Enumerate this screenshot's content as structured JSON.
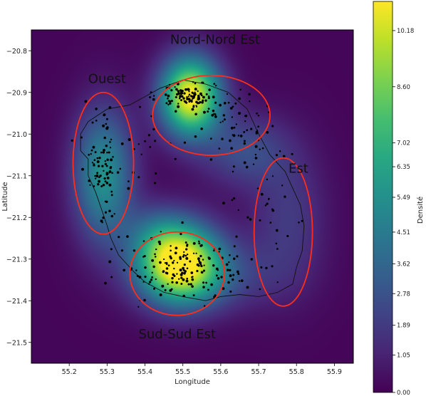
{
  "chart_data": {
    "type": "heatmap",
    "title": "",
    "xlabel": "Longitude",
    "ylabel": "Latitude",
    "xlim": [
      55.1,
      55.95
    ],
    "ylim": [
      -21.55,
      -20.75
    ],
    "x_ticks": [
      55.2,
      55.3,
      55.4,
      55.5,
      55.6,
      55.7,
      55.8,
      55.9
    ],
    "x_tick_labels": [
      "55.2",
      "55.3",
      "55.4",
      "55.5",
      "55.6",
      "55.7",
      "55.8",
      "55.9"
    ],
    "y_ticks": [
      -20.8,
      -20.9,
      -21.0,
      -21.1,
      -21.2,
      -21.3,
      -21.4,
      -21.5
    ],
    "y_tick_labels": [
      "−20.8",
      "−20.9",
      "−21.0",
      "−21.1",
      "−21.2",
      "−21.3",
      "−21.4",
      "−21.5"
    ],
    "grid": false,
    "colormap": "viridis",
    "colorbar": {
      "label": "Densité",
      "range": [
        0.0,
        11.0
      ],
      "ticks": [
        0.0,
        1.05,
        1.89,
        2.78,
        3.62,
        4.51,
        5.49,
        6.35,
        7.02,
        8.6,
        10.18
      ],
      "tick_labels": [
        "0.00",
        "1.05",
        "1.89",
        "2.78",
        "3.62",
        "4.51",
        "5.49",
        "6.35",
        "7.02",
        "8.60",
        "10.18"
      ]
    },
    "density_peaks": [
      {
        "lon": 55.52,
        "lat": -20.91,
        "sx": 0.055,
        "sy": 0.065,
        "peak": 11.0
      },
      {
        "lon": 55.49,
        "lat": -21.31,
        "sx": 0.075,
        "sy": 0.065,
        "peak": 11.0
      },
      {
        "lon": 55.29,
        "lat": -21.1,
        "sx": 0.055,
        "sy": 0.11,
        "peak": 5.4
      },
      {
        "lon": 55.66,
        "lat": -21.04,
        "sx": 0.08,
        "sy": 0.06,
        "peak": 2.4
      },
      {
        "lon": 55.78,
        "lat": -21.2,
        "sx": 0.07,
        "sy": 0.12,
        "peak": 1.7
      },
      {
        "lon": 55.58,
        "lat": -21.34,
        "sx": 0.12,
        "sy": 0.06,
        "peak": 2.0
      },
      {
        "lon": 55.43,
        "lat": -21.24,
        "sx": 0.06,
        "sy": 0.05,
        "peak": 2.0
      }
    ],
    "regions": [
      {
        "name": "Ouest",
        "center": [
          55.29,
          -21.07
        ],
        "radii": [
          0.08,
          0.17
        ],
        "label_at": [
          55.3,
          -20.877
        ]
      },
      {
        "name": "Nord-Nord Est",
        "center": [
          55.575,
          -20.955
        ],
        "radii": [
          0.155,
          0.096
        ],
        "label_at": [
          55.585,
          -20.783
        ]
      },
      {
        "name": "Est",
        "center": [
          55.765,
          -21.235
        ],
        "radii": [
          0.077,
          0.178
        ],
        "label_at": [
          55.805,
          -21.093
        ]
      },
      {
        "name": "Sud-Sud Est",
        "center": [
          55.485,
          -21.335
        ],
        "radii": [
          0.125,
          0.1
        ],
        "label_at": [
          55.485,
          -21.49
        ]
      }
    ],
    "region_color": "#ff2d1a",
    "coastline": [
      [
        55.25,
        -21.06
      ],
      [
        55.23,
        -21.04
      ],
      [
        55.23,
        -21.0
      ],
      [
        55.25,
        -20.97
      ],
      [
        55.3,
        -20.94
      ],
      [
        55.36,
        -20.93
      ],
      [
        55.4,
        -20.91
      ],
      [
        55.44,
        -20.89
      ],
      [
        55.5,
        -20.87
      ],
      [
        55.56,
        -20.88
      ],
      [
        55.62,
        -20.9
      ],
      [
        55.67,
        -20.94
      ],
      [
        55.7,
        -21.0
      ],
      [
        55.73,
        -21.05
      ],
      [
        55.77,
        -21.09
      ],
      [
        55.79,
        -21.13
      ],
      [
        55.81,
        -21.17
      ],
      [
        55.82,
        -21.22
      ],
      [
        55.815,
        -21.28
      ],
      [
        55.8,
        -21.32
      ],
      [
        55.79,
        -21.36
      ],
      [
        55.75,
        -21.38
      ],
      [
        55.7,
        -21.39
      ],
      [
        55.65,
        -21.385
      ],
      [
        55.6,
        -21.39
      ],
      [
        55.56,
        -21.4
      ],
      [
        55.5,
        -21.39
      ],
      [
        55.45,
        -21.38
      ],
      [
        55.4,
        -21.355
      ],
      [
        55.37,
        -21.33
      ],
      [
        55.33,
        -21.29
      ],
      [
        55.31,
        -21.25
      ],
      [
        55.3,
        -21.22
      ],
      [
        55.285,
        -21.18
      ],
      [
        55.27,
        -21.14
      ],
      [
        55.25,
        -21.1
      ],
      [
        55.25,
        -21.06
      ]
    ],
    "point_clusters": [
      {
        "lon": 55.52,
        "lat": -20.91,
        "sx": 0.04,
        "sy": 0.015,
        "n": 110
      },
      {
        "lon": 55.48,
        "lat": -21.32,
        "sx": 0.07,
        "sy": 0.035,
        "n": 140
      },
      {
        "lon": 55.29,
        "lat": -21.08,
        "sx": 0.025,
        "sy": 0.07,
        "n": 90
      },
      {
        "lon": 55.64,
        "lat": -20.98,
        "sx": 0.05,
        "sy": 0.04,
        "n": 55
      },
      {
        "lon": 55.71,
        "lat": -21.13,
        "sx": 0.05,
        "sy": 0.08,
        "n": 40
      },
      {
        "lon": 55.42,
        "lat": -21.05,
        "sx": 0.04,
        "sy": 0.05,
        "n": 20
      },
      {
        "lon": 55.62,
        "lat": -21.33,
        "sx": 0.06,
        "sy": 0.04,
        "n": 40
      }
    ]
  }
}
